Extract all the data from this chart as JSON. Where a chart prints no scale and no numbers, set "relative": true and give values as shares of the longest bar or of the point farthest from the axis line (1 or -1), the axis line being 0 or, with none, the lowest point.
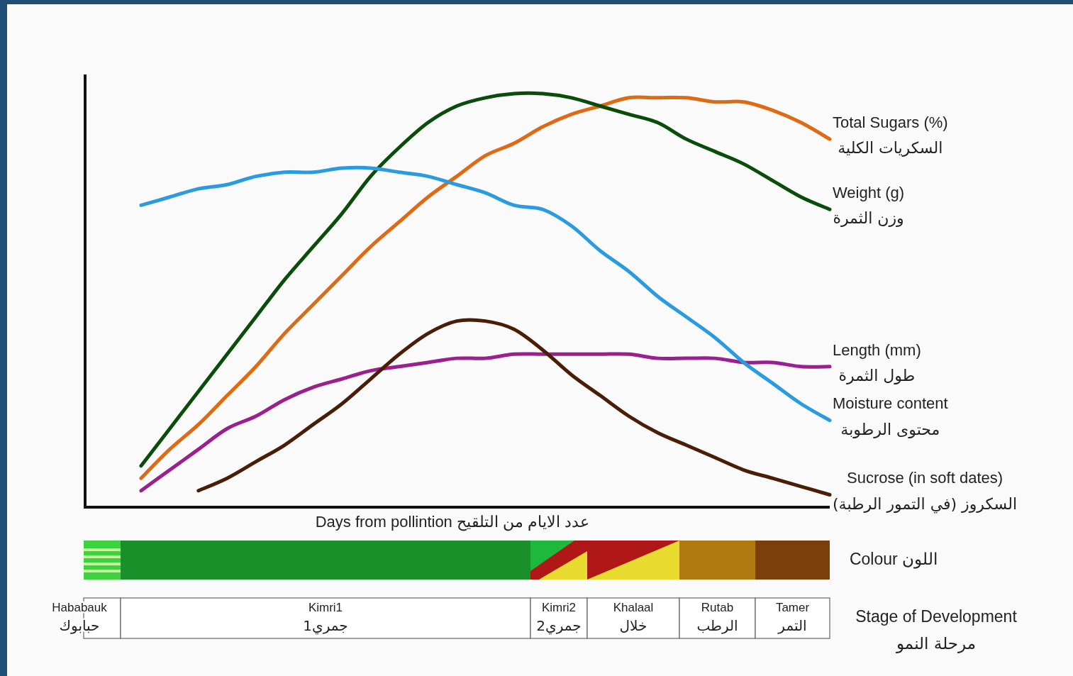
{
  "chart_data": [
    {
      "type": "line",
      "relative": true,
      "xlabel": "Days from pollintion  عدد الايام من التلقيح",
      "categories": [
        null,
        null,
        null,
        null,
        null,
        null,
        null,
        null,
        null,
        null,
        null,
        null,
        null,
        null,
        null,
        null,
        null,
        null,
        null,
        null,
        null,
        null,
        null,
        null,
        null,
        null,
        null
      ],
      "series": [
        {
          "name": "Total Sugars (%)\nالسكريات الكلية",
          "color": "#e06a14",
          "values": [
            null,
            null,
            0.07,
            0.14,
            0.2,
            0.27,
            0.34,
            0.42,
            0.49,
            0.56,
            0.63,
            0.69,
            0.75,
            0.8,
            0.85,
            0.88,
            0.92,
            0.95,
            0.97,
            0.99,
            0.99,
            0.99,
            0.98,
            0.98,
            0.96,
            0.93,
            0.89
          ]
        },
        {
          "name": "Weight (g)\nوزن الثمرة",
          "color": "#0a4d0a",
          "values": [
            null,
            null,
            0.1,
            0.19,
            0.28,
            0.37,
            0.46,
            0.55,
            0.63,
            0.71,
            0.8,
            0.87,
            0.93,
            0.97,
            0.99,
            1.0,
            1.0,
            0.99,
            0.97,
            0.95,
            0.93,
            0.89,
            0.86,
            0.83,
            0.79,
            0.75,
            0.72
          ]
        },
        {
          "name": "Length  (mm)\nطول الثمرة",
          "color": "#9b1f8f",
          "values": [
            null,
            null,
            0.04,
            0.09,
            0.14,
            0.19,
            0.22,
            0.26,
            0.29,
            0.31,
            0.33,
            0.34,
            0.35,
            0.36,
            0.36,
            0.37,
            0.37,
            0.37,
            0.37,
            0.37,
            0.36,
            0.36,
            0.36,
            0.35,
            0.35,
            0.34,
            0.34
          ]
        },
        {
          "name": "Moisture content\nمحتوى الرطوبة",
          "color": "#2a9be0",
          "values": [
            null,
            null,
            0.73,
            0.75,
            0.77,
            0.78,
            0.8,
            0.81,
            0.81,
            0.82,
            0.82,
            0.81,
            0.8,
            0.78,
            0.76,
            0.73,
            0.72,
            0.68,
            0.62,
            0.57,
            0.51,
            0.46,
            0.41,
            0.35,
            0.3,
            0.25,
            0.21
          ]
        },
        {
          "name": "Sucrose (in soft dates)\nالسكروز (في التمور الرطبة)",
          "color": "#4a1e06",
          "values": [
            null,
            null,
            null,
            null,
            0.04,
            0.07,
            0.11,
            0.15,
            0.2,
            0.25,
            0.31,
            0.37,
            0.42,
            0.45,
            0.45,
            0.43,
            0.38,
            0.32,
            0.27,
            0.22,
            0.18,
            0.15,
            0.12,
            0.09,
            0.07,
            0.05,
            0.03
          ]
        }
      ]
    },
    {
      "type": "other",
      "title": "Stage of Development\nمرحلة النمو",
      "ylabel": "Colour  اللون",
      "categories": [
        "Hababauk\nحبابوك",
        "Kimri1\nجمري1",
        "Kimri2\nجمري2",
        "Khalaal\nخلال",
        "Rutab\nالرطب",
        "Tamer\nالتمر"
      ]
    }
  ]
}
